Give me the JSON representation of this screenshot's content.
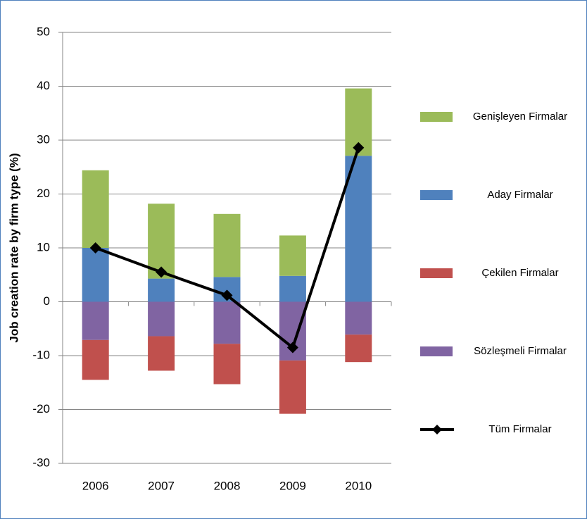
{
  "chart_data": {
    "type": "bar",
    "stacked": true,
    "y_label": "Job creation rate by firm type (%)",
    "categories": [
      "2006",
      "2007",
      "2008",
      "2009",
      "2010"
    ],
    "series": [
      {
        "name": "Genişleyen Firmalar",
        "color": "#9bbb59",
        "values": [
          14.4,
          13.9,
          11.7,
          7.5,
          12.5
        ]
      },
      {
        "name": "Aday Firmalar",
        "color": "#4f81bd",
        "values": [
          10,
          4.3,
          4.6,
          4.8,
          27.1
        ]
      },
      {
        "name": "Çekilen Firmalar",
        "color": "#c0504d",
        "values": [
          -7.4,
          -6.4,
          -7.5,
          -9.9,
          -5.1
        ]
      },
      {
        "name": "Sözleşmeli Firmalar",
        "color": "#8064a2",
        "values": [
          -7.1,
          -6.4,
          -7.8,
          -10.9,
          -6.1
        ]
      },
      {
        "name": "Tüm Firmalar",
        "color": "#000000",
        "type": "line",
        "values": [
          10,
          5.5,
          1.2,
          -8.5,
          28.6
        ]
      }
    ],
    "ylim": [
      -30,
      50
    ],
    "yticks": [
      -30,
      -20,
      -10,
      0,
      10,
      20,
      30,
      40,
      50
    ],
    "grid": true,
    "legend": "right"
  }
}
